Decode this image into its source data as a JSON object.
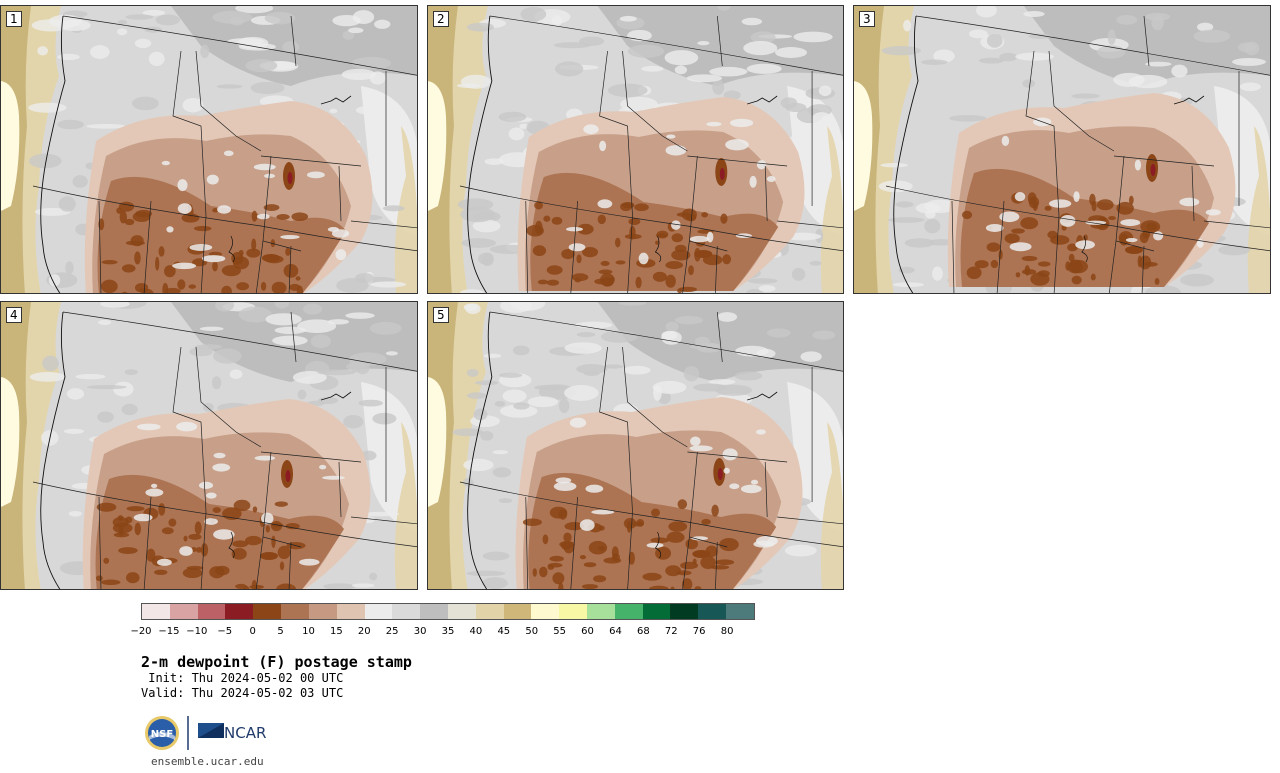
{
  "panels": [
    {
      "label": "1",
      "variant": 0
    },
    {
      "label": "2",
      "variant": 1
    },
    {
      "label": "3",
      "variant": 2
    },
    {
      "label": "4",
      "variant": 3
    },
    {
      "label": "5",
      "variant": 4
    }
  ],
  "colorbar": {
    "colors": [
      "#f3e6e6",
      "#d9a3a3",
      "#bc6166",
      "#8c1c24",
      "#8b4516",
      "#ad7453",
      "#c69a82",
      "#e0c4b2",
      "#ececec",
      "#dadada",
      "#bebebe",
      "#e4e2d5",
      "#e2d3a8",
      "#cfb679",
      "#fff9d0",
      "#f7f7a6",
      "#a6e09a",
      "#46b36a",
      "#046c37",
      "#003b22",
      "#175756",
      "#4d7a7a"
    ],
    "ticks": [
      "−20",
      "−15",
      "−10",
      "−5",
      "0",
      "5",
      "10",
      "15",
      "20",
      "25",
      "30",
      "35",
      "40",
      "45",
      "50",
      "55",
      "60",
      "64",
      "68",
      "72",
      "76",
      "80"
    ]
  },
  "legend_colors": {
    "ocean_deep": "#c9b57a",
    "ocean_mid": "#e3d5ab",
    "ocean_light": "#fffbe0",
    "land_light": "#ececec",
    "land_mid": "#d8d8d8",
    "land_dark": "#b4b4b4",
    "brown_light": "#e3c8b7",
    "brown_mid": "#c8a08a",
    "brown_dark": "#ad7453",
    "brown_deep": "#8b4516",
    "red": "#8c1c24"
  },
  "title": "2-m dewpoint (F) postage stamp",
  "init": " Init: Thu 2024-05-02 00 UTC",
  "valid": "Valid: Thu 2024-05-02 03 UTC",
  "logos": {
    "nsf": "NSF",
    "ncar": "NCAR"
  },
  "site": "ensemble.ucar.edu"
}
